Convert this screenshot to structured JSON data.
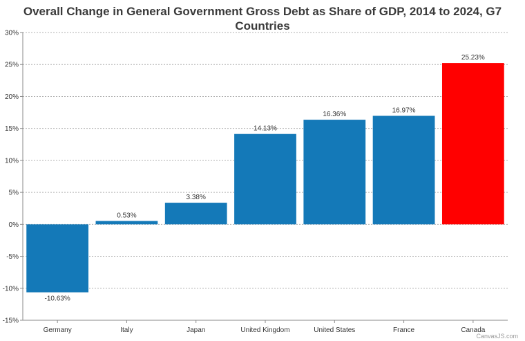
{
  "chart_data": {
    "type": "bar",
    "title_line1": "Overall Change in General Government Gross Debt as Share of GDP, 2014 to 2024, G7",
    "title_line2": "Countries",
    "categories": [
      "Germany",
      "Italy",
      "Japan",
      "United Kingdom",
      "United States",
      "France",
      "Canada"
    ],
    "values": [
      -10.63,
      0.53,
      3.38,
      14.13,
      16.36,
      16.97,
      25.23
    ],
    "value_labels": [
      "-10.63%",
      "0.53%",
      "3.38%",
      "14.13%",
      "16.36%",
      "16.97%",
      "25.23%"
    ],
    "y_ticks": [
      30,
      25,
      20,
      15,
      10,
      5,
      0,
      -5,
      -10,
      -15
    ],
    "y_tick_labels": [
      "30%",
      "25%",
      "20%",
      "15%",
      "10%",
      "5%",
      "0%",
      "-5%",
      "-10%",
      "-15%"
    ],
    "ylim": [
      -15,
      30
    ],
    "grid": true,
    "xlabel": "",
    "ylabel": "",
    "colors": {
      "default_bar": "#1479b8",
      "highlight_bar": "#ff0000",
      "grid": "#b0b0b0",
      "axis": "#888888",
      "text": "#333333"
    },
    "highlight_category": "Canada"
  },
  "credit": "CanvasJS.com"
}
